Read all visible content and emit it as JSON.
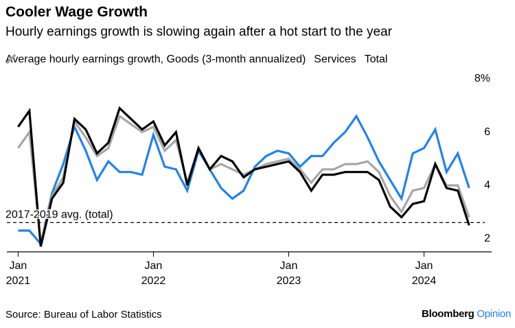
{
  "chart_data": {
    "type": "line",
    "title": "Cooler Wage Growth",
    "subtitle": "Hourly earnings growth is slowing again after a hot start to the year",
    "source": "Source: Bureau of Labor Statistics",
    "credit": "Bloomberg",
    "credit_suffix": "Opinion",
    "x": [
      "2021-01",
      "2021-02",
      "2021-03",
      "2021-04",
      "2021-05",
      "2021-06",
      "2021-07",
      "2021-08",
      "2021-09",
      "2021-10",
      "2021-11",
      "2021-12",
      "2022-01",
      "2022-02",
      "2022-03",
      "2022-04",
      "2022-05",
      "2022-06",
      "2022-07",
      "2022-08",
      "2022-09",
      "2022-10",
      "2022-11",
      "2022-12",
      "2023-01",
      "2023-02",
      "2023-03",
      "2023-04",
      "2023-05",
      "2023-06",
      "2023-07",
      "2023-08",
      "2023-09",
      "2023-10",
      "2023-11",
      "2023-12",
      "2024-01",
      "2024-02",
      "2024-03",
      "2024-04",
      "2024-05"
    ],
    "xlim": [
      "2020-12",
      "2024-07"
    ],
    "xticks": [
      {
        "value": "2021-01",
        "label": "Jan 2021"
      },
      {
        "value": "2022-01",
        "label": "Jan 2022"
      },
      {
        "value": "2023-01",
        "label": "Jan 2023"
      },
      {
        "value": "2024-01",
        "label": "Jan 2024"
      }
    ],
    "ylim": [
      1.5,
      8
    ],
    "yticks": [
      2,
      4,
      6,
      {
        "value": 8,
        "label": "8%"
      }
    ],
    "series": [
      {
        "name": "Average hourly earnings growth, Goods (3-month annualized)",
        "color": "#1f82f0",
        "values": [
          2.3,
          2.3,
          1.8,
          3.7,
          4.8,
          6.2,
          5.3,
          4.2,
          4.9,
          4.5,
          4.5,
          4.4,
          5.9,
          4.7,
          4.6,
          3.8,
          5.3,
          4.6,
          3.9,
          3.5,
          3.8,
          4.7,
          5.1,
          5.3,
          5.2,
          4.7,
          5.1,
          5.1,
          5.6,
          6.0,
          6.6,
          5.8,
          4.9,
          4.2,
          3.5,
          5.2,
          5.4,
          6.1,
          4.5,
          5.2,
          3.9
        ]
      },
      {
        "name": "Services",
        "color": "#000000",
        "values": [
          6.2,
          6.8,
          1.7,
          3.5,
          4.1,
          6.5,
          6.1,
          5.2,
          5.6,
          6.9,
          6.5,
          6.1,
          6.4,
          5.5,
          6.0,
          4.0,
          5.4,
          4.6,
          5.1,
          4.9,
          4.3,
          4.6,
          4.7,
          4.8,
          4.9,
          4.5,
          3.8,
          4.4,
          4.4,
          4.5,
          4.5,
          4.5,
          4.2,
          3.2,
          2.8,
          3.3,
          3.4,
          4.8,
          3.9,
          3.8,
          2.5
        ]
      },
      {
        "name": "Total",
        "color": "#a6a6a6",
        "values": [
          5.4,
          6.0,
          1.8,
          3.6,
          4.3,
          6.4,
          5.8,
          5.1,
          5.4,
          6.6,
          6.3,
          6.0,
          6.2,
          5.3,
          5.7,
          4.1,
          5.4,
          4.6,
          4.8,
          4.6,
          4.4,
          4.6,
          4.8,
          4.9,
          5.0,
          4.6,
          4.1,
          4.6,
          4.6,
          4.8,
          4.8,
          4.9,
          4.5,
          3.6,
          3.0,
          3.8,
          3.9,
          4.8,
          4.0,
          4.0,
          2.8
        ]
      }
    ],
    "reference": {
      "label": "2017-2019 avg. (total)",
      "value": 2.6
    }
  }
}
